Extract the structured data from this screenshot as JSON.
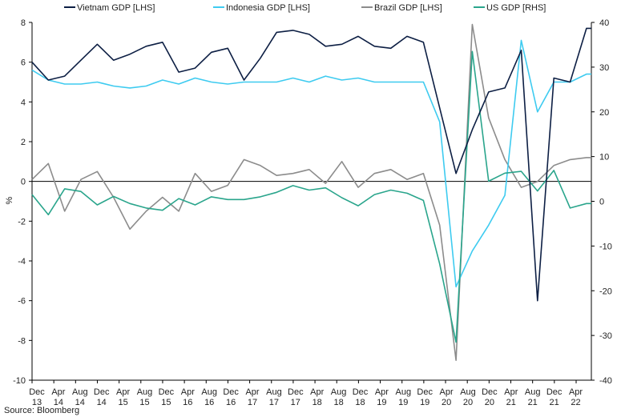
{
  "source": "Source: Bloomberg",
  "chart_data": {
    "type": "line",
    "xlabel": "",
    "ylabel_left": "%",
    "ylabel_right": "",
    "ylim_left": [
      -10,
      8
    ],
    "ylim_right": [
      -40,
      40
    ],
    "yticks_left": [
      8,
      6,
      4,
      2,
      0,
      -2,
      -4,
      -6,
      -8,
      -10
    ],
    "yticks_right": [
      40,
      30,
      20,
      10,
      0,
      -10,
      -20,
      -30,
      -40
    ],
    "grid": false,
    "legend_position": "top",
    "x_tick_labels": [
      [
        "Dec",
        "13"
      ],
      [
        "Apr",
        "14"
      ],
      [
        "Aug",
        "14"
      ],
      [
        "Dec",
        "14"
      ],
      [
        "Apr",
        "15"
      ],
      [
        "Aug",
        "15"
      ],
      [
        "Dec",
        "15"
      ],
      [
        "Apr",
        "16"
      ],
      [
        "Aug",
        "16"
      ],
      [
        "Dec",
        "16"
      ],
      [
        "Apr",
        "17"
      ],
      [
        "Aug",
        "17"
      ],
      [
        "Dec",
        "17"
      ],
      [
        "Apr",
        "18"
      ],
      [
        "Aug",
        "18"
      ],
      [
        "Dec",
        "18"
      ],
      [
        "Apr",
        "19"
      ],
      [
        "Aug",
        "19"
      ],
      [
        "Dec",
        "19"
      ],
      [
        "Apr",
        "20"
      ],
      [
        "Aug",
        "20"
      ],
      [
        "Dec",
        "20"
      ],
      [
        "Apr",
        "21"
      ],
      [
        "Aug",
        "21"
      ],
      [
        "Dec",
        "21"
      ],
      [
        "Apr",
        "22"
      ]
    ],
    "series": [
      {
        "name": "Vietnam GDP [LHS]",
        "axis": "left",
        "color": "#0d1f44",
        "points": [
          [
            0,
            6.0
          ],
          [
            1,
            5.1
          ],
          [
            2,
            5.3
          ],
          [
            3,
            6.1
          ],
          [
            4,
            6.9
          ],
          [
            5,
            6.1
          ],
          [
            6,
            6.4
          ],
          [
            7,
            6.8
          ],
          [
            8,
            7.0
          ],
          [
            9,
            5.5
          ],
          [
            10,
            5.7
          ],
          [
            11,
            6.5
          ],
          [
            12,
            6.7
          ],
          [
            13,
            5.1
          ],
          [
            14,
            6.2
          ],
          [
            15,
            7.5
          ],
          [
            16,
            7.6
          ],
          [
            17,
            7.4
          ],
          [
            18,
            6.8
          ],
          [
            19,
            6.9
          ],
          [
            20,
            7.3
          ],
          [
            21,
            6.8
          ],
          [
            22,
            6.7
          ],
          [
            23,
            7.3
          ],
          [
            24,
            7.0
          ],
          [
            25,
            3.7
          ],
          [
            26,
            0.4
          ],
          [
            27,
            2.6
          ],
          [
            28,
            4.5
          ],
          [
            29,
            4.7
          ],
          [
            30,
            6.6
          ],
          [
            31,
            -6.0
          ],
          [
            32,
            5.2
          ],
          [
            33,
            5.0
          ],
          [
            34,
            7.7
          ],
          [
            34.3,
            7.7
          ]
        ]
      },
      {
        "name": "Indonesia GDP [LHS]",
        "axis": "left",
        "color": "#3ecbf0",
        "points": [
          [
            0,
            5.6
          ],
          [
            1,
            5.1
          ],
          [
            2,
            4.9
          ],
          [
            3,
            4.9
          ],
          [
            4,
            5.0
          ],
          [
            5,
            4.8
          ],
          [
            6,
            4.7
          ],
          [
            7,
            4.8
          ],
          [
            8,
            5.1
          ],
          [
            9,
            4.9
          ],
          [
            10,
            5.2
          ],
          [
            11,
            5.0
          ],
          [
            12,
            4.9
          ],
          [
            13,
            5.0
          ],
          [
            14,
            5.0
          ],
          [
            15,
            5.0
          ],
          [
            16,
            5.2
          ],
          [
            17,
            5.0
          ],
          [
            18,
            5.3
          ],
          [
            19,
            5.1
          ],
          [
            20,
            5.2
          ],
          [
            21,
            5.0
          ],
          [
            22,
            5.0
          ],
          [
            23,
            5.0
          ],
          [
            24,
            5.0
          ],
          [
            25,
            3.0
          ],
          [
            26,
            -5.3
          ],
          [
            27,
            -3.5
          ],
          [
            28,
            -2.2
          ],
          [
            29,
            -0.7
          ],
          [
            30,
            7.1
          ],
          [
            31,
            3.5
          ],
          [
            32,
            5.0
          ],
          [
            33,
            5.0
          ],
          [
            34,
            5.4
          ],
          [
            34.3,
            5.4
          ]
        ]
      },
      {
        "name": "Brazil GDP [LHS]",
        "axis": "left",
        "color": "#8c8c8c",
        "points": [
          [
            0,
            0.1
          ],
          [
            1,
            0.9
          ],
          [
            2,
            -1.5
          ],
          [
            3,
            0.1
          ],
          [
            4,
            0.5
          ],
          [
            5,
            -0.8
          ],
          [
            6,
            -2.4
          ],
          [
            7,
            -1.5
          ],
          [
            8,
            -0.8
          ],
          [
            9,
            -1.5
          ],
          [
            10,
            0.4
          ],
          [
            11,
            -0.5
          ],
          [
            12,
            -0.2
          ],
          [
            13,
            1.1
          ],
          [
            14,
            0.8
          ],
          [
            15,
            0.3
          ],
          [
            16,
            0.4
          ],
          [
            17,
            0.6
          ],
          [
            18,
            -0.1
          ],
          [
            19,
            1.0
          ],
          [
            20,
            -0.3
          ],
          [
            21,
            0.4
          ],
          [
            22,
            0.6
          ],
          [
            23,
            0.1
          ],
          [
            24,
            0.4
          ],
          [
            25,
            -2.2
          ],
          [
            26,
            -9.0
          ],
          [
            27,
            7.9
          ],
          [
            28,
            3.2
          ],
          [
            29,
            1.1
          ],
          [
            30,
            -0.3
          ],
          [
            31,
            0.0
          ],
          [
            32,
            0.8
          ],
          [
            33,
            1.1
          ],
          [
            34,
            1.2
          ],
          [
            34.3,
            1.2
          ]
        ]
      },
      {
        "name": "US GDP [RHS]",
        "axis": "right",
        "color": "#2aa58c",
        "points": [
          [
            0,
            1.5
          ],
          [
            1,
            -3.0
          ],
          [
            2,
            2.8
          ],
          [
            3,
            2.2
          ],
          [
            4,
            -0.8
          ],
          [
            5,
            1.1
          ],
          [
            6,
            -0.5
          ],
          [
            7,
            -1.5
          ],
          [
            8,
            -2.0
          ],
          [
            9,
            0.6
          ],
          [
            10,
            -0.8
          ],
          [
            11,
            1.0
          ],
          [
            12,
            0.4
          ],
          [
            13,
            0.4
          ],
          [
            14,
            1.0
          ],
          [
            15,
            2.0
          ],
          [
            16,
            3.5
          ],
          [
            17,
            2.5
          ],
          [
            18,
            3.0
          ],
          [
            19,
            0.8
          ],
          [
            20,
            -1.0
          ],
          [
            21,
            1.5
          ],
          [
            22,
            2.5
          ],
          [
            23,
            1.8
          ],
          [
            24,
            0.2
          ],
          [
            25,
            -14.0
          ],
          [
            26,
            -31.5
          ],
          [
            27,
            33.5
          ],
          [
            28,
            4.5
          ],
          [
            29,
            6.3
          ],
          [
            30,
            6.7
          ],
          [
            31,
            2.3
          ],
          [
            32,
            6.9
          ],
          [
            33,
            -1.5
          ],
          [
            34,
            -0.5
          ],
          [
            34.3,
            -0.5
          ]
        ]
      }
    ]
  }
}
